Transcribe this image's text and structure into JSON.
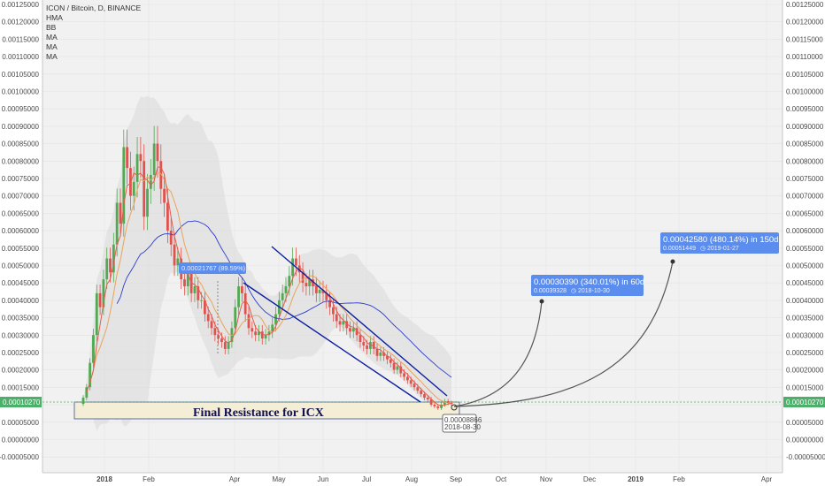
{
  "chart_data": {
    "type": "candlestick",
    "legend": [
      "ICON / Bitcoin, D, BINANCE",
      "HMA",
      "BB",
      "MA",
      "MA",
      "MA"
    ],
    "y_ticks": [
      "0.00125000",
      "0.00120000",
      "0.00115000",
      "0.00110000",
      "0.00105000",
      "0.00100000",
      "0.00095000",
      "0.00090000",
      "0.00085000",
      "0.00080000",
      "0.00075000",
      "0.00070000",
      "0.00065000",
      "0.00060000",
      "0.00055000",
      "0.00050000",
      "0.00045000",
      "0.00040000",
      "0.00035000",
      "0.00030000",
      "0.00025000",
      "0.00020000",
      "0.00015000",
      "0.00010000",
      "0.00005000",
      "0.00000000",
      "-0.00005000"
    ],
    "ylim": [
      -7e-05,
      0.00126
    ],
    "x_ticks": [
      "2018",
      "Feb",
      "Apr",
      "May",
      "Jun",
      "Jul",
      "Aug",
      "Sep",
      "Oct",
      "Nov",
      "Dec",
      "2019",
      "Feb",
      "Apr"
    ],
    "last_price": "0.00010270",
    "closes": [
      0.00012,
      0.00015,
      0.00022,
      0.0003,
      0.00042,
      0.00038,
      0.00046,
      0.00052,
      0.00048,
      0.00056,
      0.00068,
      0.00062,
      0.00084,
      0.00078,
      0.0007,
      0.00074,
      0.00082,
      0.0008,
      0.00064,
      0.00072,
      0.00076,
      0.00085,
      0.0008,
      0.00072,
      0.00068,
      0.0006,
      0.00056,
      0.0005,
      0.00052,
      0.00046,
      0.00044,
      0.00048,
      0.00042,
      0.00044,
      0.0004,
      0.0004,
      0.00036,
      0.00034,
      0.00032,
      0.0003,
      0.00029,
      0.00028,
      0.00026,
      0.00028,
      0.00032,
      0.00038,
      0.00044,
      0.00042,
      0.00036,
      0.00032,
      0.00031,
      0.0003,
      0.00031,
      0.00029,
      0.0003,
      0.00031,
      0.00033,
      0.00036,
      0.0004,
      0.00042,
      0.00044,
      0.00047,
      0.00052,
      0.0005,
      0.00048,
      0.00045,
      0.00044,
      0.00046,
      0.00044,
      0.00042,
      0.00043,
      0.00042,
      0.0004,
      0.00038,
      0.00036,
      0.00034,
      0.00033,
      0.00034,
      0.00032,
      0.00031,
      0.00032,
      0.0003,
      0.00028,
      0.00027,
      0.00026,
      0.00028,
      0.00026,
      0.00024,
      0.00025,
      0.00024,
      0.00023,
      0.00022,
      0.0002,
      0.00021,
      0.00019,
      0.00018,
      0.00017,
      0.00016,
      0.00015,
      0.00014,
      0.00013,
      0.00012,
      0.000115,
      0.0001,
      9.5e-05,
      9e-05,
      0.0001,
      0.00011,
      0.000105,
      0.0001027
    ],
    "annotations": {
      "range_label": "0.00021767 (89.59%) 2177",
      "low_label": "0.00008866",
      "low_date": "2018-08-30",
      "target1_main": "0.00030390 (340.01%) in 60d",
      "target1_sub": "0.00039328",
      "target1_date": "2018-10-30",
      "target2_main": "0.00042580 (480.14%) in 150d",
      "target2_sub": "0.00051449",
      "target2_date": "2019-01-27",
      "resistance": "Final Resistance for ICX"
    },
    "colors": {
      "up": "#53a953",
      "down": "#e0524e",
      "hma": "#e55c4d",
      "ma": "#e9a35a",
      "bb_basis": "#2b3ccf",
      "trend": "#0b1fa0",
      "target_box": "#5b8def",
      "price_tag": "#4caf6a",
      "resistance_fill": "#f5eed7"
    }
  }
}
